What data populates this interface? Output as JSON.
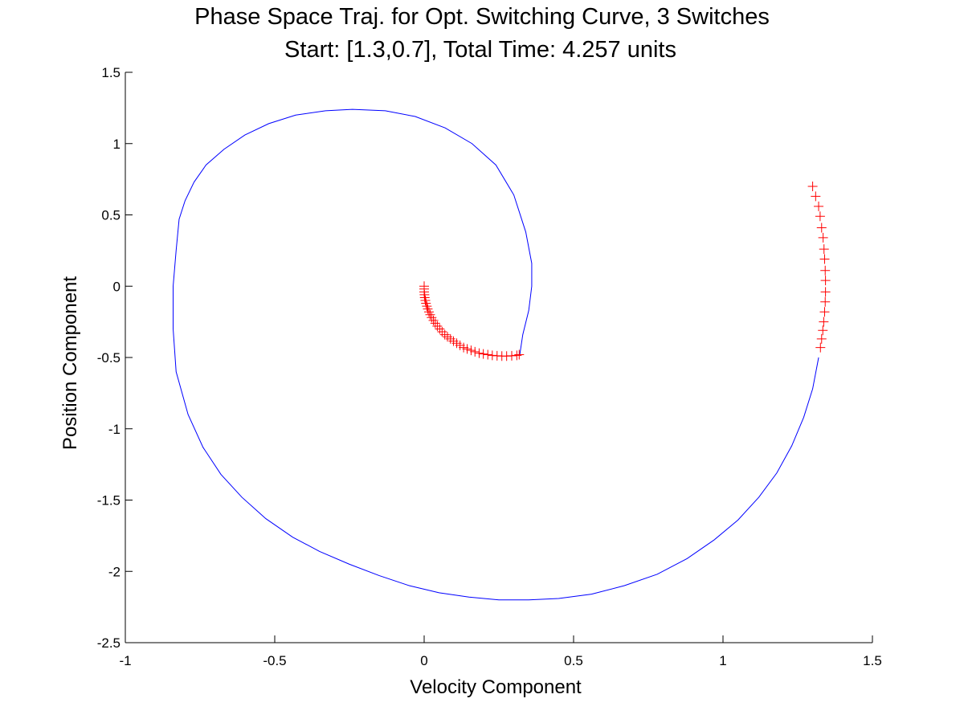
{
  "chart_data": {
    "type": "line",
    "title": "Phase Space Traj. for Opt. Switching Curve, 3 Switches",
    "subtitle": "Start:  [1.3,0.7], Total Time:  4.257 units",
    "xlabel": "Velocity Component",
    "ylabel": "Position Component",
    "xlim": [
      -1,
      1.5
    ],
    "ylim": [
      -2.5,
      1.5
    ],
    "xticks": [
      -1,
      -0.5,
      0,
      0.5,
      1,
      1.5
    ],
    "xtick_labels": [
      "-1",
      "-0.5",
      "0",
      "0.5",
      "1",
      "1.5"
    ],
    "yticks": [
      -2.5,
      -2,
      -1.5,
      -1,
      -0.5,
      0,
      0.5,
      1,
      1.5
    ],
    "ytick_labels": [
      "-2.5",
      "-2",
      "-1.5",
      "-1",
      "-0.5",
      "0",
      "0.5",
      "1",
      "1.5"
    ],
    "grid": false,
    "series": [
      {
        "style": "line",
        "color": "#0000ff",
        "x": [
          1.32,
          1.3,
          1.27,
          1.23,
          1.18,
          1.12,
          1.05,
          0.97,
          0.88,
          0.78,
          0.67,
          0.56,
          0.45,
          0.35,
          0.25,
          0.15,
          0.05,
          -0.05,
          -0.15,
          -0.25,
          -0.35,
          -0.44,
          -0.53,
          -0.61,
          -0.68,
          -0.74,
          -0.79,
          -0.83,
          -0.84,
          -0.84,
          -0.83,
          -0.82,
          -0.8,
          -0.77,
          -0.73,
          -0.67,
          -0.6,
          -0.52,
          -0.43,
          -0.33,
          -0.24,
          -0.13,
          -0.03,
          0.07,
          0.16,
          0.24,
          0.3,
          0.34,
          0.36,
          0.36,
          0.35,
          0.33,
          0.32
        ],
        "y": [
          -0.5,
          -0.72,
          -0.92,
          -1.12,
          -1.31,
          -1.48,
          -1.64,
          -1.78,
          -1.91,
          -2.02,
          -2.1,
          -2.16,
          -2.19,
          -2.2,
          -2.2,
          -2.18,
          -2.15,
          -2.1,
          -2.03,
          -1.95,
          -1.86,
          -1.76,
          -1.63,
          -1.48,
          -1.32,
          -1.13,
          -0.9,
          -0.6,
          -0.3,
          0.0,
          0.25,
          0.47,
          0.6,
          0.73,
          0.85,
          0.96,
          1.06,
          1.14,
          1.2,
          1.23,
          1.24,
          1.23,
          1.19,
          1.11,
          1.0,
          0.85,
          0.64,
          0.38,
          0.16,
          0.0,
          -0.17,
          -0.34,
          -0.48
        ]
      },
      {
        "style": "marker",
        "marker": "+",
        "color": "#ff0000",
        "x": [
          1.3,
          1.31,
          1.32,
          1.325,
          1.33,
          1.335,
          1.338,
          1.34,
          1.342,
          1.343,
          1.343,
          1.342,
          1.34,
          1.337,
          1.334,
          1.33,
          1.326
        ],
        "y": [
          0.7,
          0.63,
          0.56,
          0.49,
          0.41,
          0.34,
          0.26,
          0.19,
          0.11,
          0.04,
          -0.04,
          -0.11,
          -0.18,
          -0.25,
          -0.31,
          -0.37,
          -0.43
        ]
      },
      {
        "style": "marker",
        "marker": "+",
        "color": "#ff0000",
        "x": [
          0.0,
          0.0,
          0.0,
          0.001,
          0.002,
          0.004,
          0.006,
          0.009,
          0.012,
          0.016,
          0.02,
          0.025,
          0.031,
          0.037,
          0.044,
          0.052,
          0.06,
          0.069,
          0.078,
          0.088,
          0.098,
          0.109,
          0.12,
          0.132,
          0.144,
          0.157,
          0.17,
          0.184,
          0.198,
          0.213,
          0.228,
          0.244,
          0.26,
          0.276,
          0.293,
          0.31,
          0.318
        ],
        "y": [
          0.0,
          -0.02,
          -0.04,
          -0.06,
          -0.08,
          -0.1,
          -0.12,
          -0.14,
          -0.16,
          -0.18,
          -0.2,
          -0.22,
          -0.24,
          -0.26,
          -0.28,
          -0.3,
          -0.32,
          -0.34,
          -0.355,
          -0.37,
          -0.385,
          -0.4,
          -0.415,
          -0.43,
          -0.44,
          -0.45,
          -0.46,
          -0.47,
          -0.475,
          -0.48,
          -0.485,
          -0.488,
          -0.49,
          -0.49,
          -0.488,
          -0.485,
          -0.48
        ]
      }
    ]
  }
}
